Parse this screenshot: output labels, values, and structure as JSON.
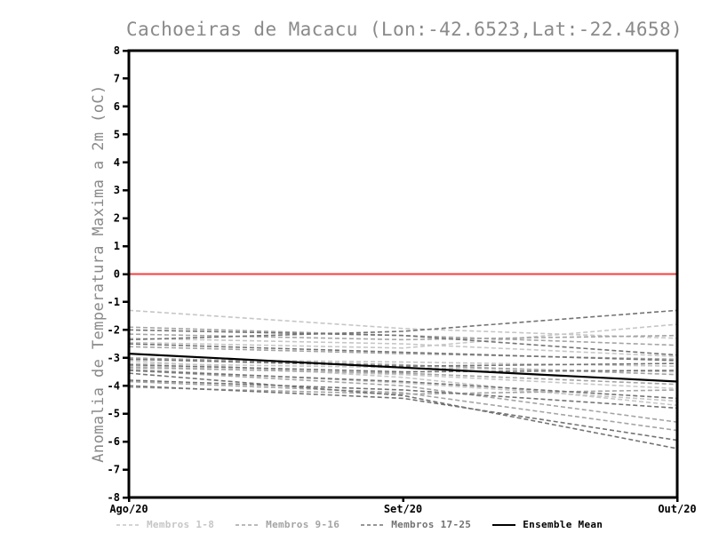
{
  "chart_data": {
    "type": "line",
    "title": "Cachoeiras de Macacu (Lon:-42.6523,Lat:-22.4658)",
    "ylabel": "Anomalia de Temperatura Maxima a 2m (oC)",
    "xlabel": "",
    "x_categories": [
      "Ago/20",
      "Set/20",
      "Out/20"
    ],
    "ylim": [
      -8,
      8
    ],
    "y_tick_step": 1,
    "grid": false,
    "legend_position": "bottom",
    "axis_color": "#000000",
    "title_color": "#8a8a8a",
    "zero_line": {
      "value": 0,
      "color": "#fa3c3c"
    },
    "groups": [
      {
        "label": "Membros 1-8",
        "color": "#c6c6c6",
        "style": "dashed"
      },
      {
        "label": "Membros 9-16",
        "color": "#a4a4a4",
        "style": "dashed"
      },
      {
        "label": "Membros 17-25",
        "color": "#737373",
        "style": "dashed"
      },
      {
        "label": "Ensemble Mean",
        "color": "#000000",
        "style": "solid"
      }
    ],
    "series": [
      {
        "group": 0,
        "values": [
          -1.3,
          -1.95,
          -2.3
        ]
      },
      {
        "group": 0,
        "values": [
          -2.45,
          -2.65,
          -1.8
        ]
      },
      {
        "group": 0,
        "values": [
          -3.05,
          -3.15,
          -3.3
        ]
      },
      {
        "group": 0,
        "values": [
          -3.2,
          -3.35,
          -3.5
        ]
      },
      {
        "group": 0,
        "values": [
          -3.3,
          -3.6,
          -4.1
        ]
      },
      {
        "group": 0,
        "values": [
          -3.4,
          -3.9,
          -4.55
        ]
      },
      {
        "group": 0,
        "values": [
          -3.1,
          -3.7,
          -4.7
        ]
      },
      {
        "group": 0,
        "values": [
          -2.3,
          -2.5,
          -2.95
        ]
      },
      {
        "group": 1,
        "values": [
          -1.9,
          -2.2,
          -2.55
        ]
      },
      {
        "group": 1,
        "values": [
          -2.15,
          -2.35,
          -2.2
        ]
      },
      {
        "group": 1,
        "values": [
          -2.6,
          -2.85,
          -3.05
        ]
      },
      {
        "group": 1,
        "values": [
          -3.0,
          -3.25,
          -3.6
        ]
      },
      {
        "group": 1,
        "values": [
          -3.35,
          -3.55,
          -3.95
        ]
      },
      {
        "group": 1,
        "values": [
          -3.45,
          -4.0,
          -5.3
        ]
      },
      {
        "group": 1,
        "values": [
          -3.85,
          -4.25,
          -5.6
        ]
      },
      {
        "group": 1,
        "values": [
          -4.05,
          -4.3,
          -4.15
        ]
      },
      {
        "group": 2,
        "values": [
          -2.0,
          -2.2,
          -2.9
        ]
      },
      {
        "group": 2,
        "values": [
          -2.35,
          -2.05,
          -1.3
        ]
      },
      {
        "group": 2,
        "values": [
          -2.5,
          -2.8,
          -3.1
        ]
      },
      {
        "group": 2,
        "values": [
          -3.05,
          -3.3,
          -3.2
        ]
      },
      {
        "group": 2,
        "values": [
          -3.25,
          -3.5,
          -3.45
        ]
      },
      {
        "group": 2,
        "values": [
          -3.45,
          -3.85,
          -4.45
        ]
      },
      {
        "group": 2,
        "values": [
          -3.8,
          -4.15,
          -4.8
        ]
      },
      {
        "group": 2,
        "values": [
          -4.0,
          -4.45,
          -5.95
        ]
      },
      {
        "group": 2,
        "values": [
          -3.55,
          -4.35,
          -6.25
        ]
      },
      {
        "group": 3,
        "values": [
          -2.85,
          -3.35,
          -3.85
        ]
      }
    ]
  }
}
